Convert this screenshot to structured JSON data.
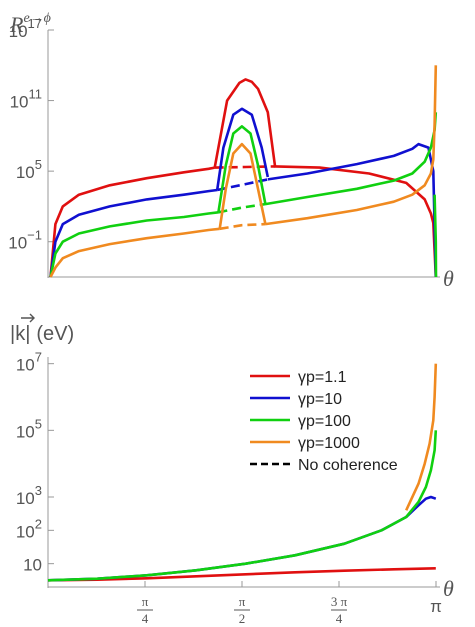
{
  "chart_data": [
    {
      "type": "line",
      "ylabel": "R^{e→ϕ}",
      "ylabel_main": "R",
      "ylabel_sup": "e→ϕ",
      "xlabel": "θ",
      "yscale": "log",
      "ylim_log10": [
        -4,
        17
      ],
      "xlim": [
        0,
        3.1416
      ],
      "yticks": [
        {
          "log10": 17,
          "base": "10",
          "exp": "17"
        },
        {
          "log10": 11,
          "base": "10",
          "exp": "11"
        },
        {
          "log10": 5,
          "base": "10",
          "exp": "5"
        },
        {
          "log10": -1,
          "base": "10",
          "exp": "−1"
        }
      ],
      "series": [
        {
          "name": "γp=1.1",
          "color": "#e01010",
          "segments": [
            {
              "style": "solid",
              "x": [
                0.02,
                0.06,
                0.12,
                0.25,
                0.5,
                0.8,
                1.1,
                1.3,
                1.35
              ],
              "y_log10": [
                -4,
                0.5,
                2.0,
                3.0,
                3.8,
                4.4,
                4.9,
                5.2,
                5.3
              ]
            },
            {
              "style": "solid",
              "x": [
                1.35,
                1.45,
                1.55,
                1.6,
                1.65,
                1.7,
                1.78,
                1.84
              ],
              "y_log10": [
                5.3,
                11.0,
                12.5,
                12.8,
                12.6,
                12.0,
                10.0,
                5.3
              ]
            },
            {
              "style": "dashed",
              "x": [
                1.35,
                1.6,
                1.84
              ],
              "y_log10": [
                5.3,
                5.35,
                5.4
              ]
            },
            {
              "style": "solid",
              "x": [
                1.84,
                2.2,
                2.6,
                2.9,
                3.05,
                3.1,
                3.12,
                3.14
              ],
              "y_log10": [
                5.4,
                5.3,
                4.8,
                4.0,
                2.6,
                1.4,
                0.6,
                -4
              ]
            }
          ]
        },
        {
          "name": "γp=10",
          "color": "#1010d0",
          "segments": [
            {
              "style": "solid",
              "x": [
                0.02,
                0.06,
                0.12,
                0.25,
                0.5,
                0.8,
                1.1,
                1.3,
                1.37
              ],
              "y_log10": [
                -4,
                -1.0,
                0.5,
                1.3,
                2.0,
                2.6,
                3.0,
                3.3,
                3.4
              ]
            },
            {
              "style": "solid",
              "x": [
                1.37,
                1.42,
                1.5,
                1.57,
                1.65,
                1.73,
                1.78
              ],
              "y_log10": [
                3.4,
                7.0,
                9.8,
                10.3,
                9.8,
                7.0,
                4.5
              ]
            },
            {
              "style": "dashed",
              "x": [
                1.37,
                1.6,
                1.78
              ],
              "y_log10": [
                3.4,
                3.9,
                4.3
              ]
            },
            {
              "style": "solid",
              "x": [
                1.78,
                2.1,
                2.5,
                2.8,
                2.95,
                3.0,
                3.08,
                3.12,
                3.14
              ],
              "y_log10": [
                4.3,
                4.8,
                5.6,
                6.3,
                6.9,
                7.3,
                7.0,
                5.0,
                -4
              ]
            }
          ]
        },
        {
          "name": "γp=100",
          "color": "#10d010",
          "segments": [
            {
              "style": "solid",
              "x": [
                0.02,
                0.06,
                0.12,
                0.25,
                0.5,
                0.8,
                1.1,
                1.3,
                1.38
              ],
              "y_log10": [
                -4,
                -2.0,
                -1.0,
                -0.3,
                0.3,
                0.8,
                1.1,
                1.4,
                1.5
              ]
            },
            {
              "style": "solid",
              "x": [
                1.38,
                1.44,
                1.5,
                1.57,
                1.64,
                1.7,
                1.76
              ],
              "y_log10": [
                1.5,
                5.5,
                8.2,
                8.8,
                8.2,
                5.5,
                2.2
              ]
            },
            {
              "style": "dashed",
              "x": [
                1.38,
                1.57,
                1.76
              ],
              "y_log10": [
                1.5,
                1.9,
                2.2
              ]
            },
            {
              "style": "solid",
              "x": [
                1.76,
                2.1,
                2.5,
                2.8,
                2.95,
                3.05,
                3.1,
                3.13,
                3.14
              ],
              "y_log10": [
                2.2,
                2.8,
                3.5,
                4.2,
                4.8,
                5.8,
                7.0,
                8.5,
                10.0
              ]
            },
            {
              "style": "solid",
              "x": [
                3.13,
                3.14,
                3.142
              ],
              "y_log10": [
                3.0,
                -1.0,
                -4
              ]
            }
          ]
        },
        {
          "name": "γp=1000",
          "color": "#f08a20",
          "segments": [
            {
              "style": "solid",
              "x": [
                0.02,
                0.06,
                0.12,
                0.25,
                0.5,
                0.8,
                1.1,
                1.3,
                1.39
              ],
              "y_log10": [
                -4,
                -3.2,
                -2.4,
                -1.8,
                -1.2,
                -0.7,
                -0.3,
                0.0,
                0.1
              ]
            },
            {
              "style": "solid",
              "x": [
                1.39,
                1.44,
                1.5,
                1.57,
                1.64,
                1.7,
                1.76
              ],
              "y_log10": [
                0.1,
                3.5,
                6.5,
                7.3,
                6.5,
                3.5,
                0.5
              ]
            },
            {
              "style": "dashed",
              "x": [
                1.39,
                1.57,
                1.76
              ],
              "y_log10": [
                0.1,
                0.4,
                0.5
              ]
            },
            {
              "style": "solid",
              "x": [
                1.76,
                2.1,
                2.5,
                2.8,
                2.95,
                3.05,
                3.1,
                3.12,
                3.13,
                3.14
              ],
              "y_log10": [
                0.5,
                1.0,
                1.7,
                2.4,
                3.0,
                3.8,
                4.8,
                6.0,
                9.0,
                14.0
              ]
            }
          ]
        }
      ]
    },
    {
      "type": "line",
      "ylabel": "|k⃗| (eV)",
      "ylabel_main": "|k|",
      "ylabel_unit": "(eV)",
      "xlabel": "θ",
      "yscale": "log",
      "ylim_log10": [
        0.3,
        7.2
      ],
      "xlim": [
        0,
        3.1416
      ],
      "yticks": [
        {
          "log10": 7,
          "base": "10",
          "exp": "7"
        },
        {
          "log10": 5,
          "base": "10",
          "exp": "5"
        },
        {
          "log10": 3,
          "base": "10",
          "exp": "3"
        },
        {
          "log10": 2,
          "base": "10",
          "exp": "2"
        },
        {
          "log10": 1,
          "base": "10",
          "exp": ""
        }
      ],
      "xticks": [
        {
          "value": 0.7854,
          "num": "π",
          "den": "4"
        },
        {
          "value": 1.5708,
          "num": "π",
          "den": "2"
        },
        {
          "value": 2.3562,
          "num": "3 π",
          "den": "4"
        },
        {
          "value": 3.1416,
          "num": "π",
          "den": ""
        }
      ],
      "legend": {
        "position": "top-right",
        "entries": [
          {
            "label": "γp=1.1",
            "color": "#e01010",
            "style": "solid"
          },
          {
            "label": "γp=10",
            "color": "#1010d0",
            "style": "solid"
          },
          {
            "label": "γp=100",
            "color": "#10d010",
            "style": "solid"
          },
          {
            "label": "γp=1000",
            "color": "#f08a20",
            "style": "solid"
          },
          {
            "label": "No coherence",
            "color": "#000000",
            "style": "dashed"
          }
        ]
      },
      "series": [
        {
          "name": "γp=1.1",
          "color": "#e01010",
          "segments": [
            {
              "style": "solid",
              "x": [
                0.0,
                0.4,
                0.8,
                1.2,
                1.6,
                2.0,
                2.4,
                2.8,
                3.14
              ],
              "y_log10": [
                0.5,
                0.52,
                0.56,
                0.62,
                0.68,
                0.74,
                0.79,
                0.83,
                0.86
              ]
            }
          ]
        },
        {
          "name": "γp=1000",
          "color": "#f08a20",
          "segments": [
            {
              "style": "solid",
              "x": [
                2.9,
                3.0,
                3.05,
                3.09,
                3.12,
                3.13,
                3.14
              ],
              "y_log10": [
                2.6,
                3.4,
                4.0,
                4.6,
                5.3,
                6.0,
                7.0
              ]
            }
          ]
        },
        {
          "name": "γp=10",
          "color": "#1010d0",
          "segments": [
            {
              "style": "solid",
              "x": [
                0.0,
                0.4,
                0.8,
                1.2,
                1.6,
                2.0,
                2.4,
                2.7,
                2.9,
                3.0,
                3.06,
                3.1,
                3.14
              ],
              "y_log10": [
                0.5,
                0.55,
                0.65,
                0.8,
                1.0,
                1.25,
                1.6,
                2.0,
                2.4,
                2.75,
                2.95,
                3.0,
                2.95
              ]
            }
          ]
        },
        {
          "name": "γp=100",
          "color": "#10d010",
          "segments": [
            {
              "style": "solid",
              "x": [
                0.0,
                0.4,
                0.8,
                1.2,
                1.6,
                2.0,
                2.4,
                2.7,
                2.9,
                3.0,
                3.06,
                3.1,
                3.13,
                3.14
              ],
              "y_log10": [
                0.5,
                0.55,
                0.65,
                0.8,
                1.0,
                1.25,
                1.6,
                2.0,
                2.4,
                2.85,
                3.3,
                3.8,
                4.4,
                5.0
              ]
            }
          ]
        }
      ]
    }
  ]
}
